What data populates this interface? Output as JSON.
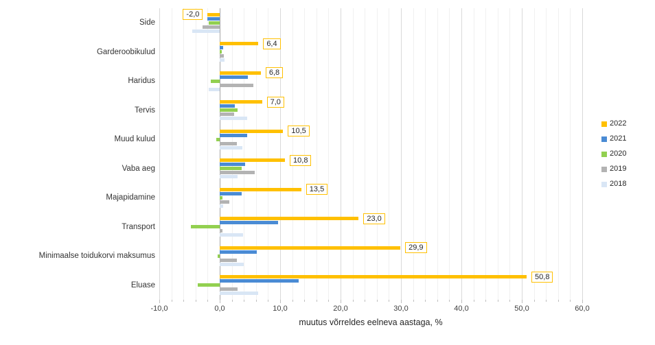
{
  "chart_data": {
    "type": "bar",
    "orientation": "horizontal",
    "title": "",
    "xlabel": "muutus võrreldes eelneva aastaga, %",
    "ylabel": "",
    "xlim": [
      -10,
      60
    ],
    "x_ticks": [
      -10,
      0,
      10,
      20,
      30,
      40,
      50,
      60
    ],
    "x_tick_labels": [
      "-10,0",
      "0,0",
      "10,0",
      "20,0",
      "30,0",
      "40,0",
      "50,0",
      "60,0"
    ],
    "minor_grid_step": 2,
    "grid": true,
    "legend_position": "right",
    "categories": [
      "Side",
      "Garderoobikulud",
      "Haridus",
      "Tervis",
      "Muud kulud",
      "Vaba aeg",
      "Majapidamine",
      "Transport",
      "Minimaalse toidukorvi maksumus",
      "Eluase"
    ],
    "series": [
      {
        "name": "2022",
        "color": "#ffc000",
        "values": [
          -2.0,
          6.4,
          6.8,
          7.0,
          10.5,
          10.8,
          13.5,
          23.0,
          29.9,
          50.8
        ],
        "data_labels": [
          "-2,0",
          "6,4",
          "6,8",
          "7,0",
          "10,5",
          "10,8",
          "13,5",
          "23,0",
          "29,9",
          "50,8"
        ]
      },
      {
        "name": "2021",
        "color": "#4a8bd4",
        "values": [
          -2.1,
          0.6,
          4.7,
          2.5,
          4.5,
          4.2,
          3.6,
          9.7,
          6.1,
          13.1
        ]
      },
      {
        "name": "2020",
        "color": "#92d050",
        "values": [
          -1.8,
          0.3,
          -1.5,
          2.9,
          -0.6,
          3.6,
          0.4,
          -4.8,
          -0.3,
          -3.6
        ]
      },
      {
        "name": "2019",
        "color": "#b3b3b3",
        "values": [
          -2.8,
          0.7,
          5.6,
          2.4,
          2.8,
          5.8,
          1.6,
          0.5,
          2.8,
          3.0
        ]
      },
      {
        "name": "2018",
        "color": "#d9e6f5",
        "values": [
          -4.5,
          0.8,
          -1.8,
          4.5,
          3.7,
          2.9,
          0.6,
          3.9,
          4.0,
          6.4
        ]
      }
    ]
  },
  "colors": {
    "background": "#ffffff",
    "grid_minor": "#f0f0f0",
    "grid_major": "#d9d9d9",
    "zero_axis": "#a6a6a6",
    "value_label_border": "#ffc000",
    "text": "#262626"
  }
}
